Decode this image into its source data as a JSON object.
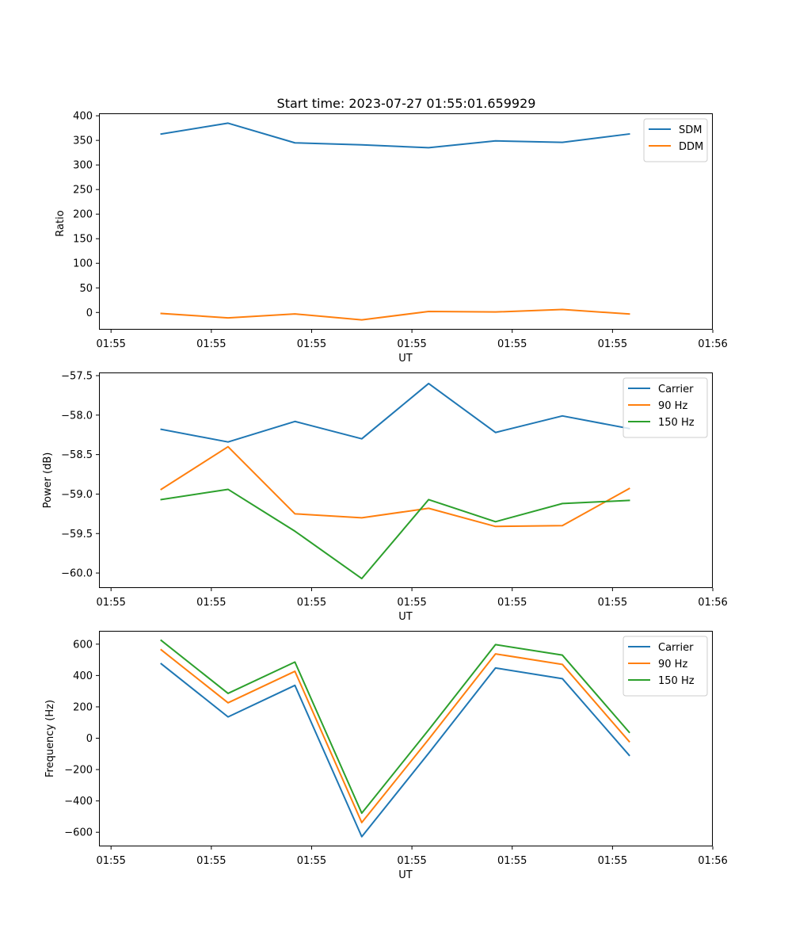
{
  "title": "Start time: 2023-07-27 01:55:01.659929",
  "chart_data": [
    {
      "type": "line",
      "ylabel": "Ratio",
      "xlabel": "UT",
      "ylim": [
        -35,
        405
      ],
      "yticks": [
        0,
        50,
        100,
        150,
        200,
        250,
        300,
        350,
        400
      ],
      "ytick_labels": [
        "0",
        "50",
        "100",
        "150",
        "200",
        "250",
        "300",
        "350",
        "400"
      ],
      "x": [
        1,
        2,
        3,
        4,
        5,
        6,
        7,
        8
      ],
      "xlim": [
        0.07,
        9.25
      ],
      "xticks": [
        0.25,
        1.75,
        3.25,
        4.75,
        6.25,
        7.75,
        9.25
      ],
      "xtick_labels": [
        "01:55",
        "01:55",
        "01:55",
        "01:55",
        "01:55",
        "01:55",
        "01:56"
      ],
      "legend": "top-right",
      "series": [
        {
          "name": "SDM",
          "color": "#1f77b4",
          "values": [
            363,
            385,
            345,
            341,
            335,
            349,
            346,
            363
          ]
        },
        {
          "name": "DDM",
          "color": "#ff7f0e",
          "values": [
            -2,
            -11,
            -3,
            -15,
            2,
            1,
            6,
            -3
          ]
        }
      ]
    },
    {
      "type": "line",
      "ylabel": "Power (dB)",
      "xlabel": "UT",
      "ylim": [
        -60.19,
        -57.46
      ],
      "yticks": [
        -60.0,
        -59.5,
        -59.0,
        -58.5,
        -58.0,
        -57.5
      ],
      "ytick_labels": [
        "−60.0",
        "−59.5",
        "−59.0",
        "−58.5",
        "−58.0",
        "−57.5"
      ],
      "x": [
        1,
        2,
        3,
        4,
        5,
        6,
        7,
        8
      ],
      "xlim": [
        0.07,
        9.25
      ],
      "xticks": [
        0.25,
        1.75,
        3.25,
        4.75,
        6.25,
        7.75,
        9.25
      ],
      "xtick_labels": [
        "01:55",
        "01:55",
        "01:55",
        "01:55",
        "01:55",
        "01:55",
        "01:56"
      ],
      "legend": "top-right",
      "series": [
        {
          "name": "Carrier",
          "color": "#1f77b4",
          "values": [
            -58.18,
            -58.34,
            -58.08,
            -58.3,
            -57.6,
            -58.22,
            -58.01,
            -58.17
          ]
        },
        {
          "name": "90 Hz",
          "color": "#ff7f0e",
          "values": [
            -58.94,
            -58.4,
            -59.25,
            -59.3,
            -59.18,
            -59.41,
            -59.4,
            -58.93
          ]
        },
        {
          "name": "150 Hz",
          "color": "#2ca02c",
          "values": [
            -59.07,
            -58.94,
            -59.47,
            -60.07,
            -59.07,
            -59.35,
            -59.12,
            -59.08
          ]
        }
      ]
    },
    {
      "type": "line",
      "ylabel": "Frequency (Hz)",
      "xlabel": "UT",
      "ylim": [
        -690,
        685
      ],
      "yticks": [
        -600,
        -400,
        -200,
        0,
        200,
        400,
        600
      ],
      "ytick_labels": [
        "−600",
        "−400",
        "−200",
        "0",
        "200",
        "400",
        "600"
      ],
      "x": [
        1,
        2,
        3,
        4,
        5,
        6,
        7,
        8
      ],
      "xlim": [
        0.07,
        9.25
      ],
      "xticks": [
        0.25,
        1.75,
        3.25,
        4.75,
        6.25,
        7.75,
        9.25
      ],
      "xtick_labels": [
        "01:55",
        "01:55",
        "01:55",
        "01:55",
        "01:55",
        "01:55",
        "01:56"
      ],
      "legend": "top-right",
      "series": [
        {
          "name": "Carrier",
          "color": "#1f77b4",
          "values": [
            475,
            136,
            337,
            -628,
            -96,
            448,
            380,
            -109
          ]
        },
        {
          "name": "90 Hz",
          "color": "#ff7f0e",
          "values": [
            564,
            226,
            427,
            -538,
            -7,
            538,
            471,
            -21
          ]
        },
        {
          "name": "150 Hz",
          "color": "#2ca02c",
          "values": [
            624,
            286,
            486,
            -478,
            53,
            597,
            530,
            38
          ]
        }
      ]
    }
  ]
}
